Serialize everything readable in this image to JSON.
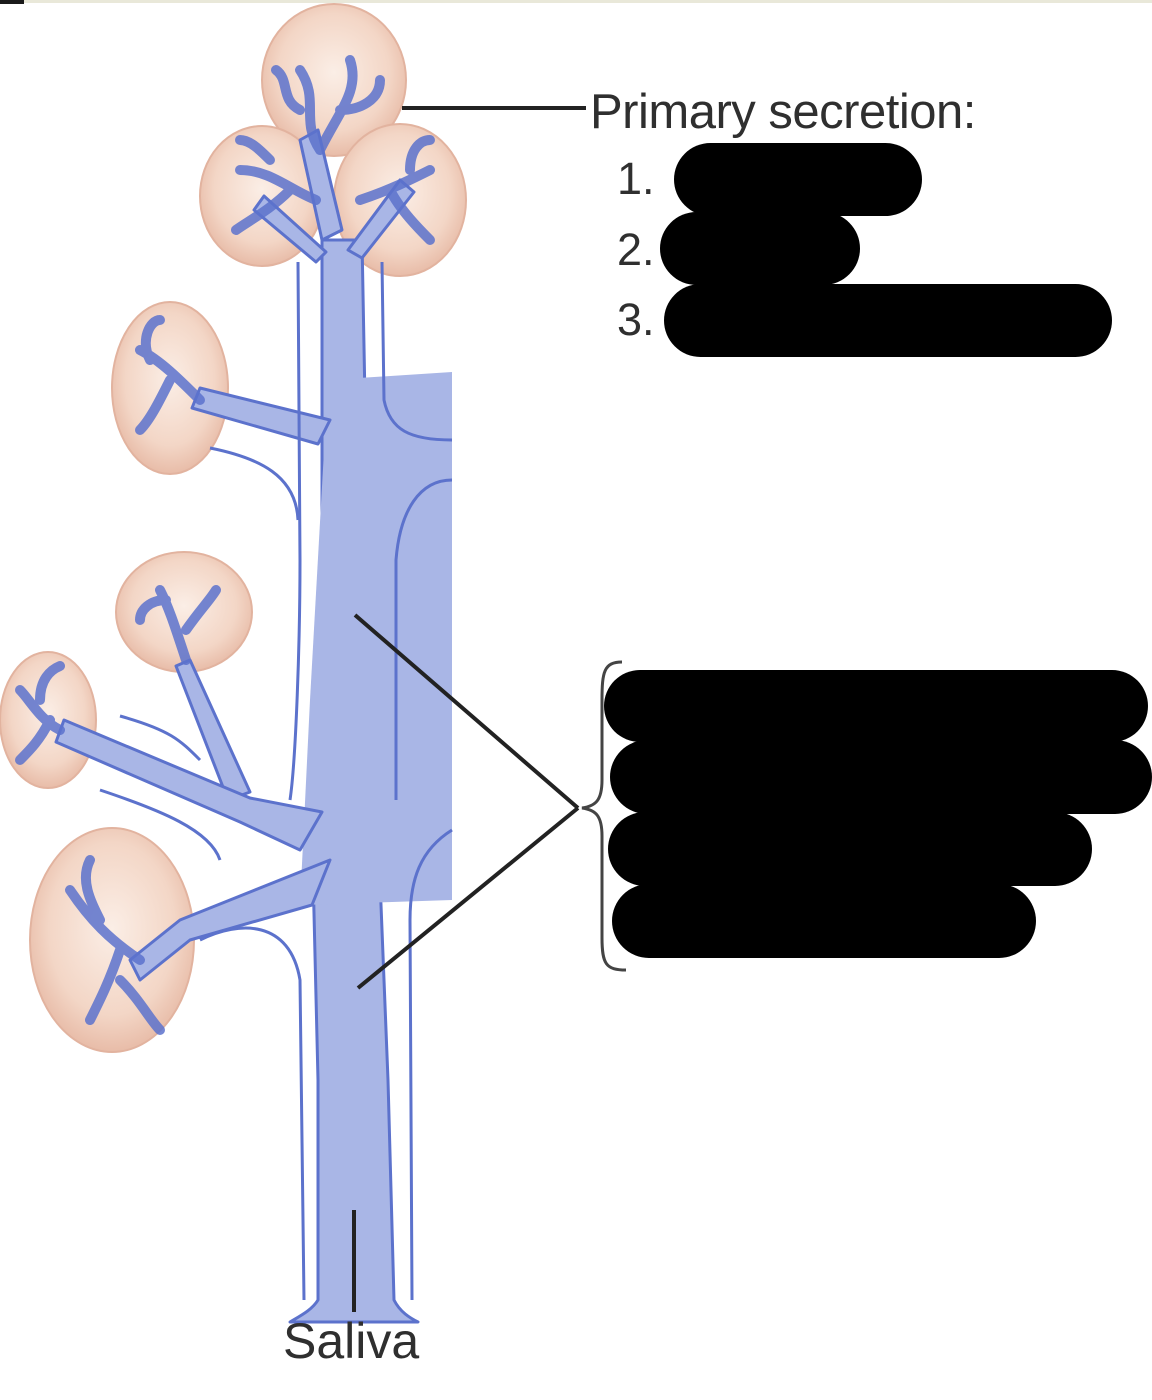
{
  "labels": {
    "primary_secretion": "Primary secretion:",
    "items": [
      "1.",
      "2.",
      "3."
    ],
    "saliva": "Saliva"
  },
  "colors": {
    "duct_fill": "#a9b6e6",
    "duct_stroke": "#5c72cc",
    "acinus_fill": "#f3d6c6",
    "acinus_edge": "#e2b39f",
    "leader_line": "#222222",
    "redaction": "#000000"
  }
}
